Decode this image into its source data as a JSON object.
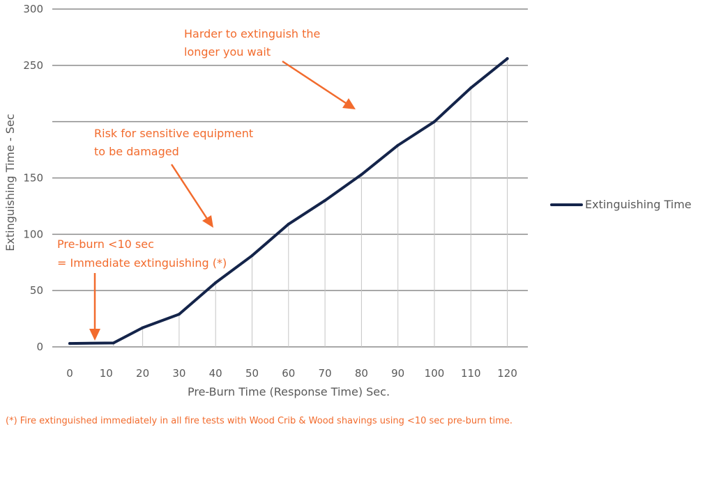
{
  "chart_data": {
    "type": "line",
    "xlabel": "Pre-Burn Time (Response Time) Sec.",
    "ylabel": "Extinguishing Time - Sec",
    "ylim": [
      0,
      300
    ],
    "y_ticks": [
      "300",
      "250",
      "150",
      "100",
      "50",
      "0"
    ],
    "x_ticks": [
      "0",
      "10",
      "20",
      "30",
      "40",
      "50",
      "60",
      "70",
      "80",
      "90",
      "100",
      "110",
      "120"
    ],
    "grid": "horizontal",
    "legend_position": "right",
    "series": [
      {
        "name": "Extinguishing Time",
        "color": "#14244a",
        "x": [
          0,
          12,
          20,
          30,
          40,
          50,
          60,
          70,
          80,
          90,
          100,
          110,
          120
        ],
        "y": [
          3,
          3.5,
          17,
          29,
          57,
          81,
          109,
          130,
          153,
          179,
          200,
          230,
          256
        ]
      }
    ],
    "annotations": [
      {
        "lines": [
          "Harder to extinguish the",
          "longer you wait"
        ]
      },
      {
        "lines": [
          "Risk for sensitive equipment",
          "to be damaged"
        ]
      },
      {
        "lines": [
          "Pre-burn <10 sec",
          "= Immediate extinguishing (*)"
        ]
      }
    ]
  },
  "footnote": "(*) Fire extinguished immediately in all fire tests with Wood Crib & Wood shavings using <10 sec pre-burn time.",
  "colors": {
    "annotation": "#f26b2d",
    "line": "#14244a",
    "grid": "#8c8c8c",
    "text": "#595959"
  }
}
